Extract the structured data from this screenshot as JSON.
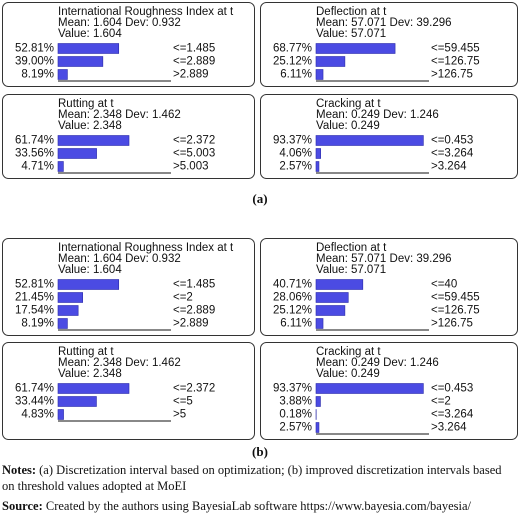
{
  "figures": [
    {
      "caption": "(a)",
      "monitors": [
        {
          "title": "International Roughness Index at t",
          "stats": "Mean: 1.604 Dev: 0.932",
          "value": "Value: 1.604",
          "percents": [
            52.81,
            39.0,
            8.19
          ],
          "percent_labels": [
            "52.81%",
            "39.00%",
            "8.19%"
          ],
          "states": [
            "<=1.485",
            "<=2.889",
            ">2.889"
          ]
        },
        {
          "title": "Deflection at t",
          "stats": "Mean: 57.071 Dev: 39.296",
          "value": "Value: 57.071",
          "percents": [
            68.77,
            25.12,
            6.11
          ],
          "percent_labels": [
            "68.77%",
            "25.12%",
            "6.11%"
          ],
          "states": [
            "<=59.455",
            "<=126.75",
            ">126.75"
          ]
        },
        {
          "title": "Rutting at t",
          "stats": "Mean: 2.348 Dev: 1.462",
          "value": "Value: 2.348",
          "percents": [
            61.74,
            33.56,
            4.71
          ],
          "percent_labels": [
            "61.74%",
            "33.56%",
            "4.71%"
          ],
          "states": [
            "<=2.372",
            "<=5.003",
            ">5.003"
          ]
        },
        {
          "title": "Cracking at t",
          "stats": "Mean: 0.249 Dev: 1.246",
          "value": "Value: 0.249",
          "percents": [
            93.37,
            4.06,
            2.57
          ],
          "percent_labels": [
            "93.37%",
            "4.06%",
            "2.57%"
          ],
          "states": [
            "<=0.453",
            "<=3.264",
            ">3.264"
          ]
        }
      ]
    },
    {
      "caption": "(b)",
      "monitors": [
        {
          "title": "International Roughness Index at t",
          "stats": "Mean: 1.604 Dev: 0.932",
          "value": "Value: 1.604",
          "percents": [
            52.81,
            21.45,
            17.54,
            8.19
          ],
          "percent_labels": [
            "52.81%",
            "21.45%",
            "17.54%",
            "8.19%"
          ],
          "states": [
            "<=1.485",
            "<=2",
            "<=2.889",
            ">2.889"
          ]
        },
        {
          "title": "Deflection at t",
          "stats": "Mean: 57.071 Dev: 39.296",
          "value": "Value: 57.071",
          "percents": [
            40.71,
            28.06,
            25.12,
            6.11
          ],
          "percent_labels": [
            "40.71%",
            "28.06%",
            "25.12%",
            "6.11%"
          ],
          "states": [
            "<=40",
            "<=59.455",
            "<=126.75",
            ">126.75"
          ]
        },
        {
          "title": "Rutting at t",
          "stats": "Mean: 2.348 Dev: 1.462",
          "value": "Value: 2.348",
          "percents": [
            61.74,
            33.44,
            4.83
          ],
          "percent_labels": [
            "61.74%",
            "33.44%",
            "4.83%"
          ],
          "states": [
            "<=2.372",
            "<=5",
            ">5"
          ]
        },
        {
          "title": "Cracking at t",
          "stats": "Mean: 0.249 Dev: 1.246",
          "value": "Value: 0.249",
          "percents": [
            93.37,
            3.88,
            0.18,
            2.57
          ],
          "percent_labels": [
            "93.37%",
            "3.88%",
            "0.18%",
            "2.57%"
          ],
          "states": [
            "<=0.453",
            "<=2",
            "<=3.264",
            ">3.264"
          ]
        }
      ]
    }
  ],
  "notes": {
    "label": "Notes:",
    "text": "(a) Discretization interval based on optimization; (b) improved discretization intervals based on threshold values adopted at MoEI"
  },
  "source": {
    "label": "Source:",
    "text": "Created by the authors using BayesiaLab software https://www.bayesia.com/bayesia/"
  }
}
